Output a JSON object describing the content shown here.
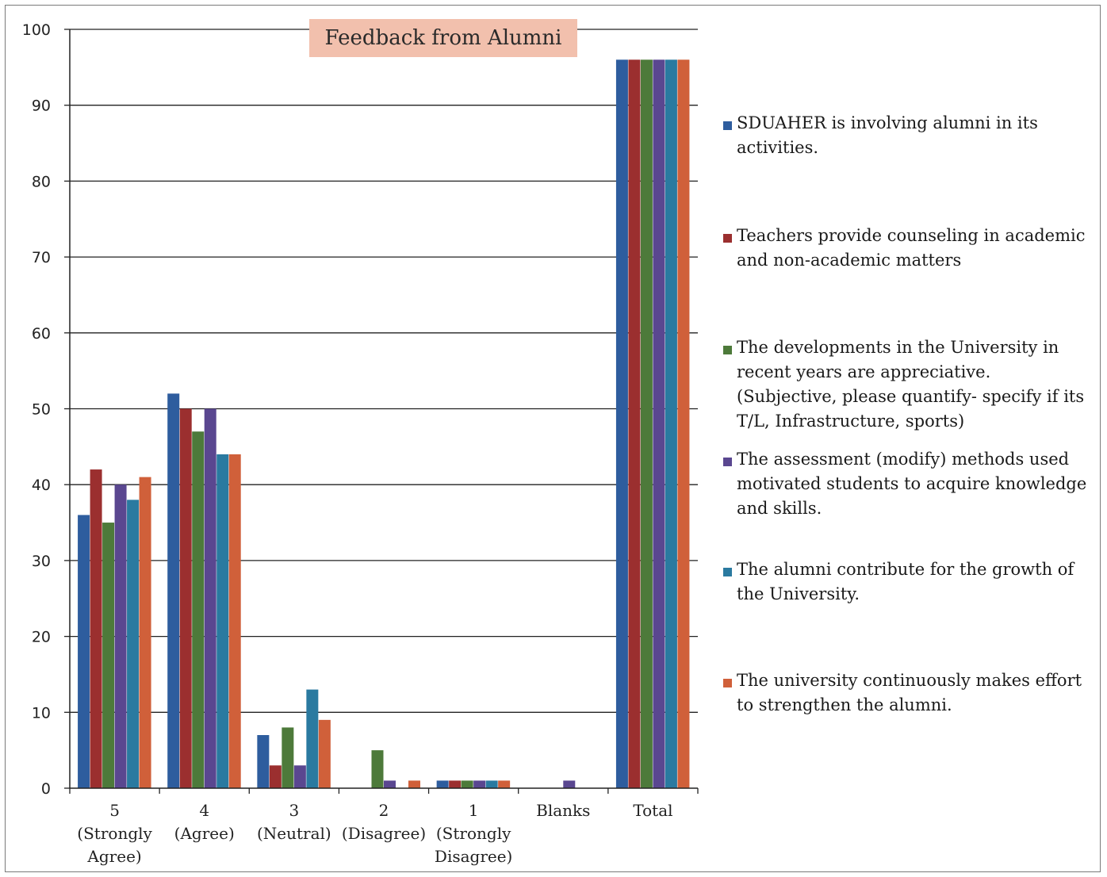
{
  "chart_data": {
    "type": "bar",
    "title": "Feedback from Alumni",
    "xlabel": "",
    "ylabel": "",
    "ylim": [
      0,
      100
    ],
    "yticks": [
      0,
      10,
      20,
      30,
      40,
      50,
      60,
      70,
      80,
      90,
      100
    ],
    "grid": true,
    "legend_position": "right",
    "categories": [
      [
        "5",
        "(Strongly",
        "Agree)"
      ],
      [
        "4",
        "(Agree)"
      ],
      [
        "3",
        "(Neutral)"
      ],
      [
        "2",
        "(Disagree)"
      ],
      [
        "1",
        "(Strongly",
        "Disagree)"
      ],
      [
        "Blanks"
      ],
      [
        "Total"
      ]
    ],
    "series": [
      {
        "name": "SDUAHER is involving alumni in its activities.",
        "color": "#2e5d9e",
        "values": [
          36,
          52,
          7,
          0,
          1,
          0,
          96
        ]
      },
      {
        "name": "Teachers provide counseling in academic and non-academic matters",
        "color": "#9b2f2f",
        "values": [
          42,
          50,
          3,
          0,
          1,
          0,
          96
        ]
      },
      {
        "name": "The developments in the University in recent years are appreciative. (Subjective, please quantify- specify if its T/L, Infrastructure, sports)",
        "color": "#4d7a3a",
        "values": [
          35,
          47,
          8,
          5,
          1,
          0,
          96
        ]
      },
      {
        "name": "The assessment (modify) methods used motivated students to acquire knowledge and skills.",
        "color": "#5a4790",
        "values": [
          40,
          50,
          3,
          1,
          1,
          1,
          96
        ]
      },
      {
        "name": "The alumni contribute for the growth of the University.",
        "color": "#2a7aa0",
        "values": [
          38,
          44,
          13,
          0,
          1,
          0,
          96
        ]
      },
      {
        "name": "The university continuously makes effort to strengthen the alumni.",
        "color": "#d0603a",
        "values": [
          41,
          44,
          9,
          1,
          1,
          0,
          96
        ]
      }
    ]
  }
}
